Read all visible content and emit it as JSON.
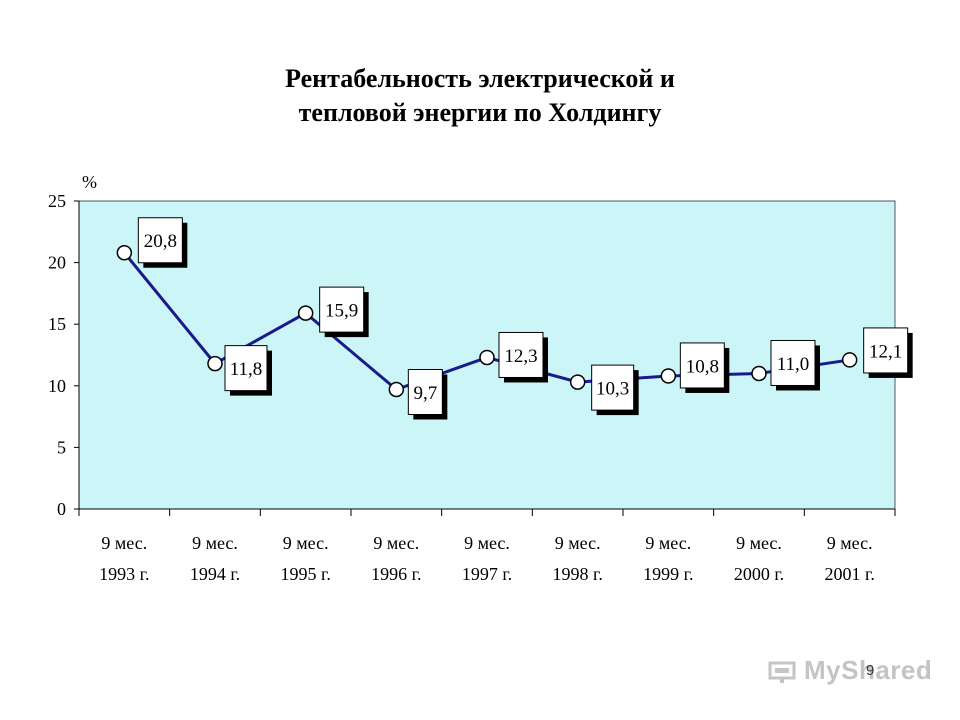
{
  "slide": {
    "page_number": "9",
    "watermark": "MyShared"
  },
  "chart_data": {
    "type": "line",
    "title": "Рентабельность электрической и тепловой энергии по Холдингу",
    "title_lines": [
      "Рентабельность электрической и",
      "тепловой энергии по Холдингу"
    ],
    "ylabel": "%",
    "xlabel": "",
    "ylim": [
      0,
      25
    ],
    "yticks": [
      "0",
      "5",
      "10",
      "15",
      "20",
      "25"
    ],
    "grid": false,
    "legend": "none",
    "categories": [
      [
        "9 мес.",
        "1993 г."
      ],
      [
        "9 мес.",
        "1994 г."
      ],
      [
        "9 мес.",
        "1995 г."
      ],
      [
        "9 мес.",
        "1996 г."
      ],
      [
        "9 мес.",
        "1997 г."
      ],
      [
        "9 мес.",
        "1998 г."
      ],
      [
        "9 мес.",
        "1999 г."
      ],
      [
        "9 мес.",
        "2000 г."
      ],
      [
        "9 мес.",
        "2001 г."
      ]
    ],
    "series": [
      {
        "values": [
          20.8,
          11.8,
          15.9,
          9.7,
          12.3,
          10.3,
          10.8,
          11.0,
          12.1
        ],
        "labels": [
          "20,8",
          "11,8",
          "15,9",
          "9,7",
          "12,3",
          "10,3",
          "10,8",
          "11,0",
          "12,1"
        ]
      }
    ],
    "colors": {
      "plot_background": "#ccf5f8",
      "line": "#1a1a8c",
      "marker_fill": "#ffffff"
    }
  }
}
